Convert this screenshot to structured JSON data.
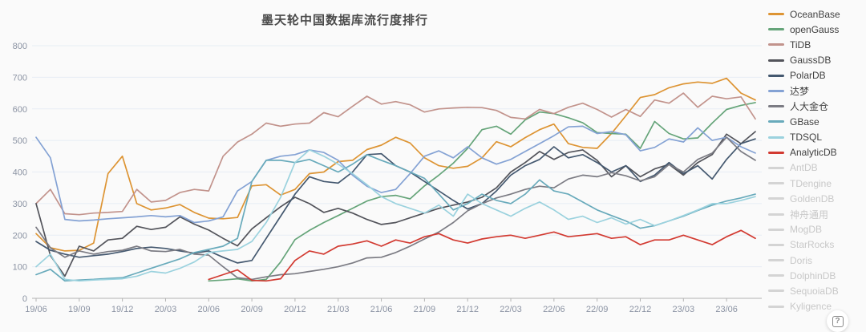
{
  "title": "墨天轮中国数据库流行度排行",
  "help_button_label": "?",
  "palette": {
    "background": "#fafafa",
    "grid": "#e7edf4",
    "axis_label": "#8b93a3",
    "title_color": "#4a4a4a",
    "disabled_legend": "#c8c8c8"
  },
  "chart_data": {
    "type": "line",
    "title": "墨天轮中国数据库流行度排行",
    "xlabel": "",
    "ylabel": "",
    "ylim": [
      0,
      800
    ],
    "y_ticks": [
      0,
      100,
      200,
      300,
      400,
      500,
      600,
      700,
      800
    ],
    "grid": true,
    "legend_position": "right",
    "x_tick_every": 3,
    "x": [
      "19/06",
      "19/07",
      "19/08",
      "19/09",
      "19/10",
      "19/11",
      "19/12",
      "20/01",
      "20/02",
      "20/03",
      "20/04",
      "20/05",
      "20/06",
      "20/07",
      "20/08",
      "20/09",
      "20/10",
      "20/11",
      "20/12",
      "21/01",
      "21/02",
      "21/03",
      "21/04",
      "21/05",
      "21/06",
      "21/07",
      "21/08",
      "21/09",
      "21/10",
      "21/11",
      "21/12",
      "22/01",
      "22/02",
      "22/03",
      "22/04",
      "22/05",
      "22/06",
      "22/07",
      "22/08",
      "22/09",
      "22/10",
      "22/11",
      "22/12",
      "23/01",
      "23/02",
      "23/03",
      "23/04",
      "23/05",
      "23/06",
      "23/07",
      "23/08"
    ],
    "series": [
      {
        "name": "OceanBase",
        "color": "#dd9433",
        "values": [
          205,
          160,
          150,
          152,
          175,
          395,
          450,
          300,
          280,
          286,
          297,
          272,
          254,
          252,
          256,
          356,
          360,
          327,
          345,
          395,
          400,
          433,
          437,
          471,
          485,
          510,
          492,
          445,
          420,
          412,
          418,
          445,
          496,
          480,
          509,
          534,
          552,
          490,
          478,
          475,
          522,
          578,
          636,
          645,
          667,
          679,
          685,
          681,
          697,
          650,
          628
        ]
      },
      {
        "name": "openGauss",
        "color": "#65a479",
        "values": [
          null,
          null,
          null,
          null,
          null,
          null,
          null,
          null,
          null,
          null,
          null,
          null,
          55,
          58,
          62,
          55,
          60,
          115,
          186,
          215,
          240,
          262,
          285,
          308,
          322,
          326,
          315,
          356,
          390,
          428,
          475,
          534,
          545,
          520,
          565,
          590,
          585,
          572,
          556,
          525,
          522,
          520,
          475,
          560,
          522,
          505,
          508,
          555,
          598,
          611,
          620
        ]
      },
      {
        "name": "TiDB",
        "color": "#c2938c",
        "values": [
          300,
          345,
          268,
          265,
          270,
          272,
          275,
          345,
          305,
          310,
          335,
          345,
          340,
          450,
          495,
          520,
          555,
          545,
          552,
          555,
          588,
          575,
          608,
          640,
          615,
          623,
          613,
          590,
          600,
          603,
          605,
          604,
          595,
          573,
          568,
          598,
          585,
          605,
          618,
          598,
          574,
          598,
          576,
          628,
          618,
          650,
          605,
          640,
          632,
          638,
          568
        ]
      },
      {
        "name": "GaussDB",
        "color": "#53545b",
        "values": [
          300,
          135,
          70,
          165,
          150,
          185,
          190,
          228,
          218,
          225,
          258,
          235,
          216,
          190,
          166,
          220,
          255,
          290,
          320,
          300,
          272,
          285,
          270,
          250,
          234,
          240,
          255,
          270,
          285,
          295,
          305,
          320,
          350,
          400,
          430,
          465,
          440,
          462,
          470,
          437,
          385,
          420,
          385,
          410,
          424,
          390,
          430,
          455,
          520,
          490,
          528
        ]
      },
      {
        "name": "PolarDB",
        "color": "#44586f",
        "values": [
          180,
          152,
          140,
          130,
          135,
          140,
          148,
          158,
          162,
          158,
          150,
          143,
          150,
          130,
          112,
          120,
          190,
          260,
          330,
          385,
          370,
          365,
          400,
          455,
          458,
          420,
          400,
          370,
          340,
          310,
          283,
          300,
          340,
          390,
          420,
          440,
          480,
          445,
          455,
          430,
          400,
          420,
          370,
          390,
          430,
          395,
          420,
          378,
          440,
          490,
          505
        ]
      },
      {
        "name": "达梦",
        "color": "#84a2d4",
        "values": [
          510,
          445,
          250,
          245,
          248,
          252,
          255,
          258,
          262,
          258,
          262,
          240,
          245,
          258,
          340,
          370,
          437,
          450,
          455,
          470,
          462,
          437,
          390,
          355,
          335,
          345,
          395,
          450,
          467,
          445,
          480,
          445,
          425,
          440,
          465,
          490,
          515,
          543,
          545,
          522,
          528,
          518,
          467,
          478,
          505,
          495,
          540,
          500,
          510,
          480,
          460
        ]
      },
      {
        "name": "人大金仓",
        "color": "#7b7b83",
        "values": [
          225,
          160,
          130,
          150,
          140,
          148,
          152,
          165,
          150,
          148,
          155,
          140,
          137,
          100,
          65,
          60,
          68,
          75,
          78,
          85,
          92,
          100,
          112,
          128,
          130,
          145,
          165,
          188,
          210,
          240,
          277,
          300,
          318,
          330,
          345,
          355,
          350,
          378,
          390,
          385,
          398,
          388,
          372,
          385,
          424,
          400,
          440,
          460,
          510,
          465,
          437
        ]
      },
      {
        "name": "GBase",
        "color": "#68aabb",
        "values": [
          75,
          92,
          55,
          58,
          60,
          63,
          65,
          80,
          95,
          110,
          125,
          145,
          155,
          165,
          190,
          370,
          437,
          437,
          430,
          440,
          420,
          400,
          425,
          455,
          437,
          420,
          400,
          380,
          330,
          280,
          300,
          330,
          310,
          300,
          330,
          375,
          340,
          330,
          305,
          280,
          262,
          245,
          222,
          230,
          245,
          260,
          278,
          295,
          308,
          318,
          330
        ]
      },
      {
        "name": "TDSQL",
        "color": "#9bd2de",
        "values": [
          100,
          140,
          60,
          55,
          58,
          60,
          62,
          70,
          85,
          80,
          95,
          115,
          145,
          150,
          155,
          180,
          240,
          320,
          430,
          470,
          450,
          425,
          395,
          360,
          322,
          300,
          285,
          270,
          295,
          260,
          330,
          300,
          280,
          260,
          285,
          305,
          280,
          250,
          260,
          240,
          255,
          235,
          250,
          230,
          245,
          262,
          280,
          300,
          300,
          310,
          322
        ]
      },
      {
        "name": "AnalyticDB",
        "color": "#d23a31",
        "values": [
          null,
          null,
          null,
          null,
          null,
          null,
          null,
          null,
          null,
          null,
          null,
          null,
          60,
          75,
          90,
          57,
          55,
          62,
          120,
          150,
          140,
          165,
          172,
          182,
          165,
          185,
          175,
          195,
          205,
          185,
          175,
          188,
          195,
          200,
          190,
          200,
          210,
          195,
          200,
          205,
          190,
          195,
          170,
          185,
          185,
          200,
          185,
          170,
          195,
          215,
          190
        ]
      }
    ],
    "disabled_series": [
      {
        "name": "AntDB"
      },
      {
        "name": "TDengine"
      },
      {
        "name": "GoldenDB"
      },
      {
        "name": "神舟通用"
      },
      {
        "name": "MogDB"
      },
      {
        "name": "StarRocks"
      },
      {
        "name": "Doris"
      },
      {
        "name": "DolphinDB"
      },
      {
        "name": "SequoiaDB"
      },
      {
        "name": "Kyligence"
      }
    ]
  }
}
